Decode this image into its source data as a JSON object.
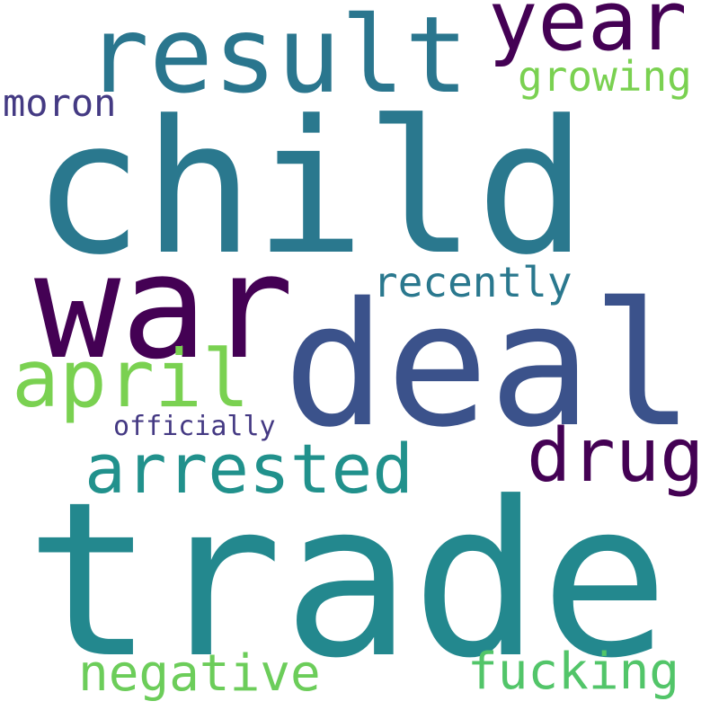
{
  "words": {
    "child": {
      "text": "child",
      "color": "#2a788e"
    },
    "trade": {
      "text": "trade",
      "color": "#23888e"
    },
    "war": {
      "text": "war",
      "color": "#440154"
    },
    "deal": {
      "text": "deal",
      "color": "#3b528b"
    },
    "result": {
      "text": "result",
      "color": "#2a768e"
    },
    "year": {
      "text": "year",
      "color": "#440154"
    },
    "growing": {
      "text": "growing",
      "color": "#7ad151"
    },
    "moron": {
      "text": "moron",
      "color": "#443a83"
    },
    "recently": {
      "text": "recently",
      "color": "#2a788e"
    },
    "april": {
      "text": "april",
      "color": "#7ad151"
    },
    "officially": {
      "text": "officially",
      "color": "#443983"
    },
    "arrested": {
      "text": "arrested",
      "color": "#21918c"
    },
    "drug": {
      "text": "drug",
      "color": "#440154"
    },
    "negative": {
      "text": "negative",
      "color": "#6ccd5a"
    },
    "fucking": {
      "text": "fucking",
      "color": "#52c569"
    }
  },
  "background_color": "#ffffff"
}
